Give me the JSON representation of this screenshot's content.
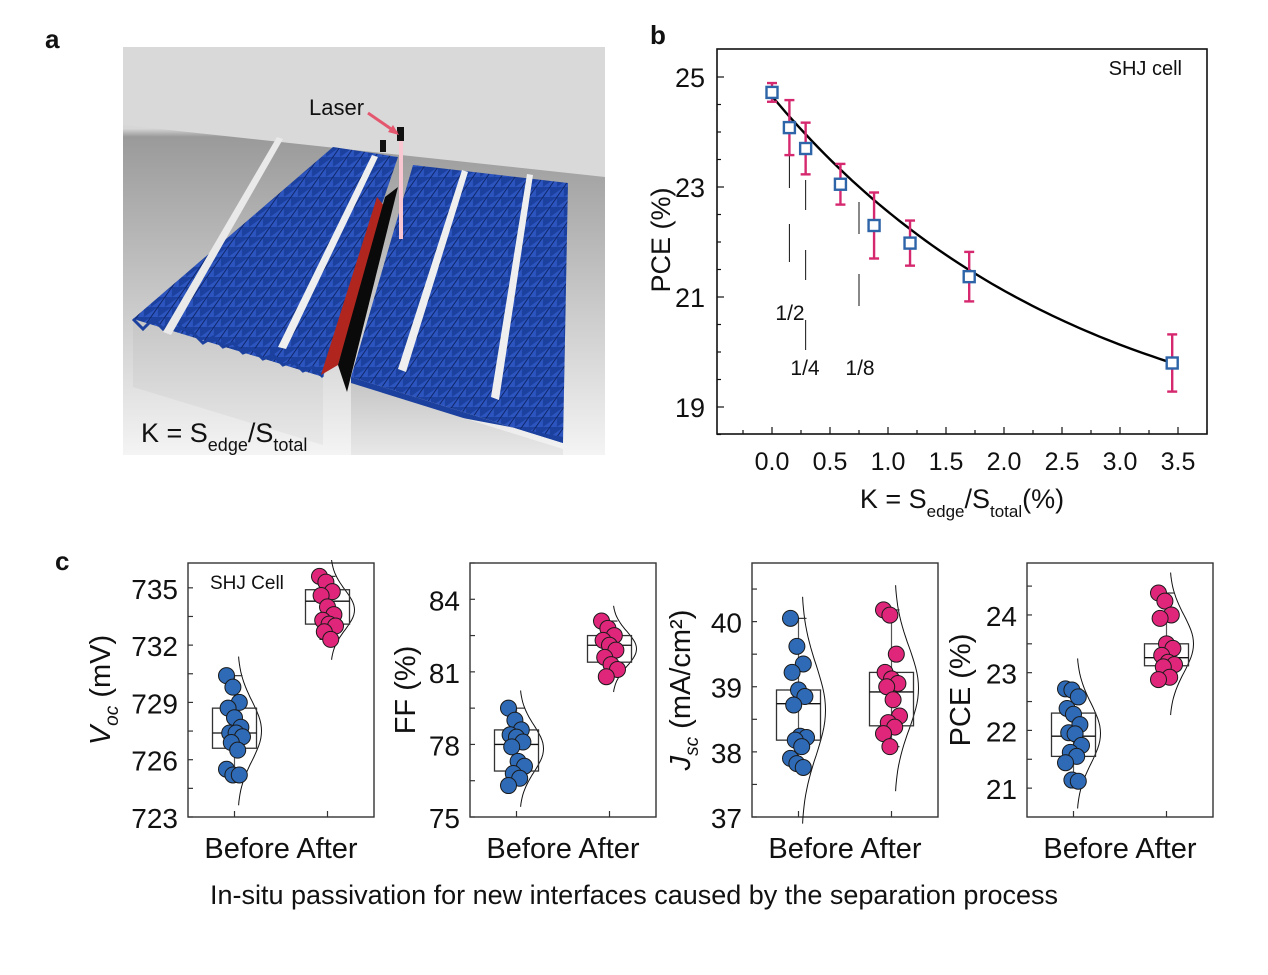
{
  "panels": {
    "a": {
      "label": "a",
      "laser_label": "Laser",
      "formula": {
        "K": "K = S",
        "sub1": "edge",
        "mid": "/S",
        "sub2": "total"
      },
      "colors": {
        "texture": "#1a3f9e",
        "finger": "#e8e8e8",
        "edge": "#b02a24",
        "laser": "#f06a82"
      }
    },
    "b": {
      "label": "b"
    },
    "c": {
      "label": "c"
    }
  },
  "caption": "In-situ passivation for new interfaces caused by the separation process",
  "chart_data": [
    {
      "id": "b",
      "type": "scatter",
      "title": "",
      "annotation": "SHJ cell",
      "xlabel": {
        "main": "K = S",
        "sub1": "edge",
        "mid": "/S",
        "sub2": "total",
        "tail": "(%)"
      },
      "ylabel": "PCE (%)",
      "xlim": [
        -0.4,
        3.75
      ],
      "ylim": [
        18.4,
        25.5
      ],
      "xticks": [
        0.0,
        0.5,
        1.0,
        1.5,
        2.0,
        2.5,
        3.0,
        3.5
      ],
      "xtick_labels": [
        "0.0",
        "0.5",
        "1.0",
        "1.5",
        "2.0",
        "2.5",
        "3.0",
        "3.5"
      ],
      "yticks": [
        19,
        21,
        23,
        25
      ],
      "ytick_labels": [
        "19",
        "21",
        "23",
        "25"
      ],
      "points": [
        {
          "x": 0.0,
          "y": 24.72,
          "err": 0.17
        },
        {
          "x": 0.15,
          "y": 24.08,
          "err": 0.5
        },
        {
          "x": 0.29,
          "y": 23.7,
          "err": 0.47
        },
        {
          "x": 0.59,
          "y": 23.05,
          "err": 0.37
        },
        {
          "x": 0.88,
          "y": 22.3,
          "err": 0.6
        },
        {
          "x": 1.19,
          "y": 21.98,
          "err": 0.41
        },
        {
          "x": 1.7,
          "y": 21.37,
          "err": 0.45
        },
        {
          "x": 3.45,
          "y": 19.8,
          "err": 0.52
        }
      ],
      "fit_curve": {
        "x0": 0.0,
        "y0": 24.65,
        "x1": 3.45,
        "y1": 19.8,
        "form": "exponential-decay"
      },
      "fraction_markers": [
        {
          "label": "1/2",
          "x": 0.15
        },
        {
          "label": "1/4",
          "x": 0.29
        },
        {
          "label": "1/8",
          "x": 0.75
        }
      ],
      "colors": {
        "marker": "#2e64a8",
        "errorbar": "#d6286f",
        "fit": "#000000"
      }
    },
    {
      "id": "c-voc",
      "type": "box",
      "annotation": "SHJ Cell",
      "ylabel": {
        "main": "V",
        "sub": "oc",
        "tail": " (mV)"
      },
      "categories": [
        "Before",
        "After"
      ],
      "ylim": [
        723,
        736.3
      ],
      "yticks": [
        723,
        726,
        729,
        732,
        735
      ],
      "series": [
        {
          "name": "Before",
          "color": "#2e6ab5",
          "box": {
            "q1": 726.6,
            "median": 727.4,
            "q3": 728.7,
            "whisker_low": 725.2,
            "whisker_high": 730.4
          },
          "values": [
            730.4,
            729.8,
            729.0,
            728.7,
            728.2,
            727.7,
            727.4,
            727.4,
            727.2,
            726.9,
            726.5,
            725.5,
            725.2,
            725.2
          ]
        },
        {
          "name": "After",
          "color": "#e0267a",
          "box": {
            "q1": 733.1,
            "median": 734.3,
            "q3": 734.9,
            "whisker_low": 732.3,
            "whisker_high": 735.6
          },
          "values": [
            735.6,
            735.3,
            734.8,
            734.6,
            734.0,
            733.6,
            733.3,
            733.1,
            733.0,
            732.7,
            732.3
          ]
        }
      ]
    },
    {
      "id": "c-ff",
      "type": "box",
      "ylabel": {
        "main": "FF (%)",
        "sub": "",
        "tail": ""
      },
      "categories": [
        "Before",
        "After"
      ],
      "ylim": [
        75,
        85.5
      ],
      "yticks": [
        75,
        78,
        81,
        84
      ],
      "series": [
        {
          "name": "Before",
          "color": "#2e6ab5",
          "box": {
            "q1": 76.9,
            "median": 78.0,
            "q3": 78.6,
            "whisker_low": 76.4,
            "whisker_high": 79.5
          },
          "values": [
            79.5,
            79.0,
            78.6,
            78.4,
            78.3,
            78.1,
            77.9,
            77.3,
            77.1,
            76.8,
            76.6,
            76.3
          ]
        },
        {
          "name": "After",
          "color": "#e0267a",
          "box": {
            "q1": 81.4,
            "median": 82.1,
            "q3": 82.5,
            "whisker_low": 80.9,
            "whisker_high": 83.1
          },
          "values": [
            83.1,
            82.8,
            82.5,
            82.3,
            82.1,
            81.9,
            81.6,
            81.3,
            81.1,
            80.8
          ]
        }
      ]
    },
    {
      "id": "c-jsc",
      "type": "box",
      "ylabel": {
        "main": "J",
        "sub": "sc",
        "tail": " (mA/cm²)"
      },
      "categories": [
        "Before",
        "After"
      ],
      "ylim": [
        37,
        40.9
      ],
      "yticks": [
        37,
        38,
        39,
        40
      ],
      "series": [
        {
          "name": "Before",
          "color": "#2e6ab5",
          "box": {
            "q1": 38.18,
            "median": 38.74,
            "q3": 38.95,
            "whisker_low": 37.75,
            "whisker_high": 40.05
          },
          "values": [
            40.05,
            39.62,
            39.35,
            39.22,
            38.95,
            38.85,
            38.72,
            38.24,
            38.22,
            38.18,
            38.08,
            37.9,
            37.82,
            37.76
          ]
        },
        {
          "name": "After",
          "color": "#e0267a",
          "box": {
            "q1": 38.4,
            "median": 38.92,
            "q3": 39.22,
            "whisker_low": 38.08,
            "whisker_high": 40.18
          },
          "values": [
            40.18,
            40.1,
            39.5,
            39.22,
            39.12,
            39.05,
            39.0,
            38.8,
            38.55,
            38.45,
            38.38,
            38.28,
            38.08
          ]
        }
      ]
    },
    {
      "id": "c-pce",
      "type": "box",
      "ylabel": {
        "main": "PCE (%)",
        "sub": "",
        "tail": ""
      },
      "categories": [
        "Before",
        "After"
      ],
      "ylim": [
        20.5,
        24.9
      ],
      "yticks": [
        21,
        22,
        23,
        24
      ],
      "series": [
        {
          "name": "Before",
          "color": "#2e6ab5",
          "box": {
            "q1": 21.55,
            "median": 21.9,
            "q3": 22.3,
            "whisker_low": 21.12,
            "whisker_high": 22.72
          },
          "values": [
            22.72,
            22.7,
            22.58,
            22.38,
            22.28,
            22.1,
            21.96,
            21.94,
            21.74,
            21.62,
            21.55,
            21.44,
            21.14,
            21.12
          ]
        },
        {
          "name": "After",
          "color": "#e0267a",
          "box": {
            "q1": 23.12,
            "median": 23.26,
            "q3": 23.5,
            "whisker_low": 22.88,
            "whisker_high": 24.38
          },
          "values": [
            24.38,
            24.24,
            24.0,
            23.94,
            23.5,
            23.42,
            23.3,
            23.18,
            23.14,
            23.1,
            22.92,
            22.88
          ]
        }
      ]
    }
  ]
}
